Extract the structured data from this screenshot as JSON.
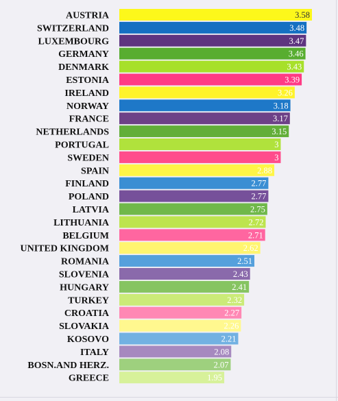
{
  "chart_data": {
    "type": "bar",
    "orientation": "horizontal",
    "title": "",
    "xlabel": "",
    "ylabel": "",
    "xlim": [
      0,
      3.58
    ],
    "grid": false,
    "legend": "none",
    "categories": [
      "AUSTRIA",
      "SWITZERLAND",
      "LUXEMBOURG",
      "GERMANY",
      "DENMARK",
      "ESTONIA",
      "IRELAND",
      "NORWAY",
      "FRANCE",
      "NETHERLANDS",
      "PORTUGAL",
      "SWEDEN",
      "SPAIN",
      "FINLAND",
      "POLAND",
      "LATVIA",
      "LITHUANIA",
      "BELGIUM",
      "UNITED KINGDOM",
      "ROMANIA",
      "SLOVENIA",
      "HUNGARY",
      "TURKEY",
      "CROATIA",
      "SLOVAKIA",
      "KOSOVO",
      "ITALY",
      "BOSN.AND HERZ.",
      "GREECE"
    ],
    "values": [
      3.58,
      3.48,
      3.47,
      3.46,
      3.43,
      3.39,
      3.26,
      3.18,
      3.17,
      3.15,
      3,
      3,
      2.88,
      2.77,
      2.77,
      2.75,
      2.72,
      2.71,
      2.62,
      2.51,
      2.43,
      2.41,
      2.32,
      2.27,
      2.26,
      2.21,
      2.08,
      2.07,
      1.95
    ],
    "value_labels": [
      "3.58",
      "3.48",
      "3.47",
      "3.46",
      "3.43",
      "3.39",
      "3.26",
      "3.18",
      "3.17",
      "3.15",
      "3",
      "3",
      "2.88",
      "2.77",
      "2.77",
      "2.75",
      "2.72",
      "2.71",
      "2.62",
      "2.51",
      "2.43",
      "2.41",
      "2.32",
      "2.27",
      "2.26",
      "2.21",
      "2.08",
      "2.07",
      "1.95"
    ],
    "colors": [
      "#fdf81b",
      "#1570c2",
      "#5e3580",
      "#58ad30",
      "#a7e02a",
      "#ff3b84",
      "#fff32a",
      "#1e78c8",
      "#6d4187",
      "#62ae39",
      "#b0e23c",
      "#ff4d8c",
      "#fff547",
      "#3a8ed3",
      "#76509a",
      "#70b84a",
      "#bde44e",
      "#ff66a0",
      "#fff570",
      "#55a0dc",
      "#8a6aab",
      "#86c461",
      "#cbeb78",
      "#ff88b4",
      "#fff88f",
      "#72b1e2",
      "#a689bf",
      "#9ed07e",
      "#d7f19a"
    ],
    "label_colors": [
      "#333333",
      "#ffffff",
      "#ffffff",
      "#ffffff",
      "#ffffff",
      "#ffffff",
      "#ffffff",
      "#ffffff",
      "#ffffff",
      "#ffffff",
      "#ffffff",
      "#ffffff",
      "#ffffff",
      "#ffffff",
      "#ffffff",
      "#ffffff",
      "#ffffff",
      "#ffffff",
      "#ffffff",
      "#ffffff",
      "#ffffff",
      "#ffffff",
      "#ffffff",
      "#ffffff",
      "#ffffff",
      "#ffffff",
      "#ffffff",
      "#ffffff",
      "#ffffff"
    ]
  }
}
